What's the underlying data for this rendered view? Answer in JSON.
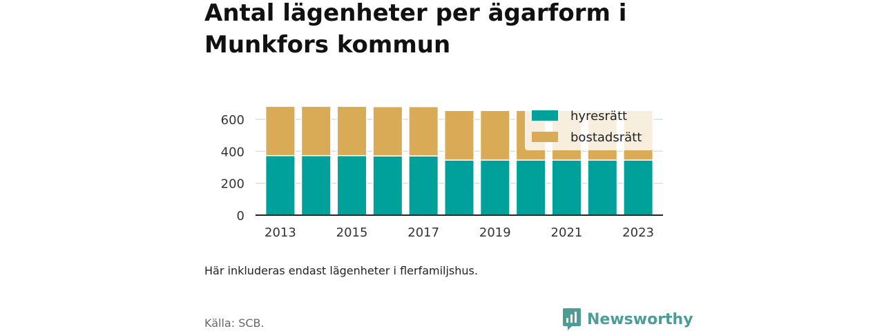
{
  "title": "Antal lägenheter per ägarform i Munkfors kommun",
  "note": "Här inkluderas endast lägenheter i flerfamiljshus.",
  "source": "Källa: SCB.",
  "brand": "Newsworthy",
  "colors": {
    "hyresratt": "#00a19a",
    "bostadsratt": "#d9ab57",
    "axis": "#222222",
    "grid": "#dddddd",
    "brand": "#4b9d95"
  },
  "chart_data": {
    "type": "bar",
    "stacked": true,
    "categories": [
      "2013",
      "2014",
      "2015",
      "2016",
      "2017",
      "2018",
      "2019",
      "2020",
      "2021",
      "2022",
      "2023"
    ],
    "x_tick_labels": [
      "2013",
      "2015",
      "2017",
      "2019",
      "2021",
      "2023"
    ],
    "series": [
      {
        "name": "hyresrätt",
        "values": [
          373,
          373,
          373,
          371,
          371,
          345,
          345,
          345,
          345,
          345,
          345
        ]
      },
      {
        "name": "bostadsrätt",
        "values": [
          309,
          309,
          309,
          309,
          309,
          311,
          311,
          311,
          311,
          311,
          311
        ]
      }
    ],
    "y_ticks": [
      0,
      200,
      400,
      600
    ],
    "ylim": [
      0,
      700
    ],
    "grid": true,
    "legend_position": "top-right",
    "title": "Antal lägenheter per ägarform i Munkfors kommun",
    "xlabel": "",
    "ylabel": ""
  }
}
